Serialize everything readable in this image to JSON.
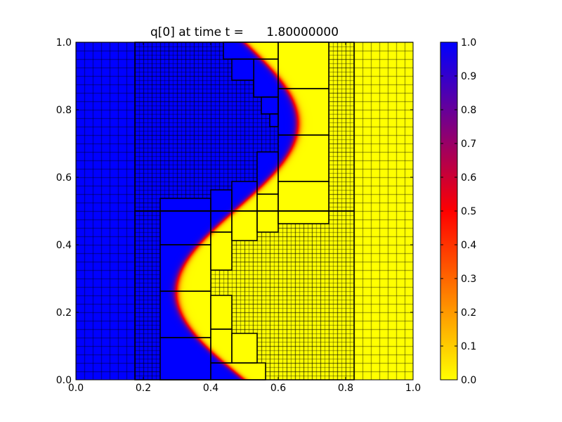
{
  "chart_data": {
    "type": "heatmap",
    "title": "q[0] at time t =      1.80000000",
    "xlabel": "",
    "ylabel": "",
    "xlim": [
      0.0,
      1.0
    ],
    "ylim": [
      0.0,
      1.0
    ],
    "x_ticks": [
      "0.0",
      "0.2",
      "0.4",
      "0.6",
      "0.8",
      "1.0"
    ],
    "y_ticks": [
      "0.0",
      "0.2",
      "0.4",
      "0.6",
      "0.8",
      "1.0"
    ],
    "colorbar": {
      "range": [
        0.0,
        1.0
      ],
      "ticks": [
        "0.0",
        "0.1",
        "0.2",
        "0.3",
        "0.4",
        "0.5",
        "0.6",
        "0.7",
        "0.8",
        "0.9",
        "1.0"
      ],
      "colormap": [
        "#ffff00",
        "#ff8000",
        "#ff0000",
        "#800080",
        "#0000ff"
      ]
    },
    "field_values": {
      "left": 1.0,
      "right": 0.0
    },
    "grid_levels": [
      {
        "level": 1,
        "cell": 0.025,
        "region": [
          0.0,
          0.0,
          1.0,
          1.0
        ]
      },
      {
        "level": 2,
        "cell": 0.0125,
        "patches": [
          [
            0.175,
            0.0,
            0.825,
            0.5
          ],
          [
            0.175,
            0.5,
            0.825,
            1.0
          ]
        ]
      },
      {
        "level": 3,
        "patches": [
          [
            0.4375,
            0.95,
            0.6,
            1.0
          ],
          [
            0.4625,
            0.8875,
            0.5275,
            0.95
          ],
          [
            0.5275,
            0.8375,
            0.6,
            0.95
          ],
          [
            0.55,
            0.7875,
            0.6,
            0.8375
          ],
          [
            0.575,
            0.75,
            0.6,
            0.7875
          ],
          [
            0.6,
            0.8625,
            0.75,
            1.0
          ],
          [
            0.6,
            0.725,
            0.75,
            0.8625
          ],
          [
            0.6,
            0.5875,
            0.75,
            0.725
          ],
          [
            0.6,
            0.5,
            0.75,
            0.5875
          ],
          [
            0.5375,
            0.55,
            0.6,
            0.675
          ],
          [
            0.5375,
            0.5,
            0.6,
            0.55
          ],
          [
            0.4625,
            0.5,
            0.5375,
            0.5875
          ],
          [
            0.4,
            0.5,
            0.4625,
            0.5625
          ],
          [
            0.25,
            0.5,
            0.4,
            0.5375
          ],
          [
            0.6,
            0.4625,
            0.75,
            0.5
          ],
          [
            0.5375,
            0.4375,
            0.6,
            0.5
          ],
          [
            0.4625,
            0.4125,
            0.5375,
            0.5
          ],
          [
            0.4,
            0.4375,
            0.4625,
            0.5
          ],
          [
            0.4,
            0.325,
            0.4625,
            0.4375
          ],
          [
            0.25,
            0.4,
            0.4,
            0.5
          ],
          [
            0.25,
            0.2625,
            0.4,
            0.4
          ],
          [
            0.25,
            0.125,
            0.4,
            0.2625
          ],
          [
            0.25,
            0.0,
            0.4,
            0.125
          ],
          [
            0.4,
            0.15,
            0.4625,
            0.25
          ],
          [
            0.4,
            0.05,
            0.4625,
            0.15
          ],
          [
            0.4625,
            0.05,
            0.5375,
            0.1375
          ],
          [
            0.4,
            0.0,
            0.5625,
            0.05
          ]
        ]
      }
    ]
  }
}
